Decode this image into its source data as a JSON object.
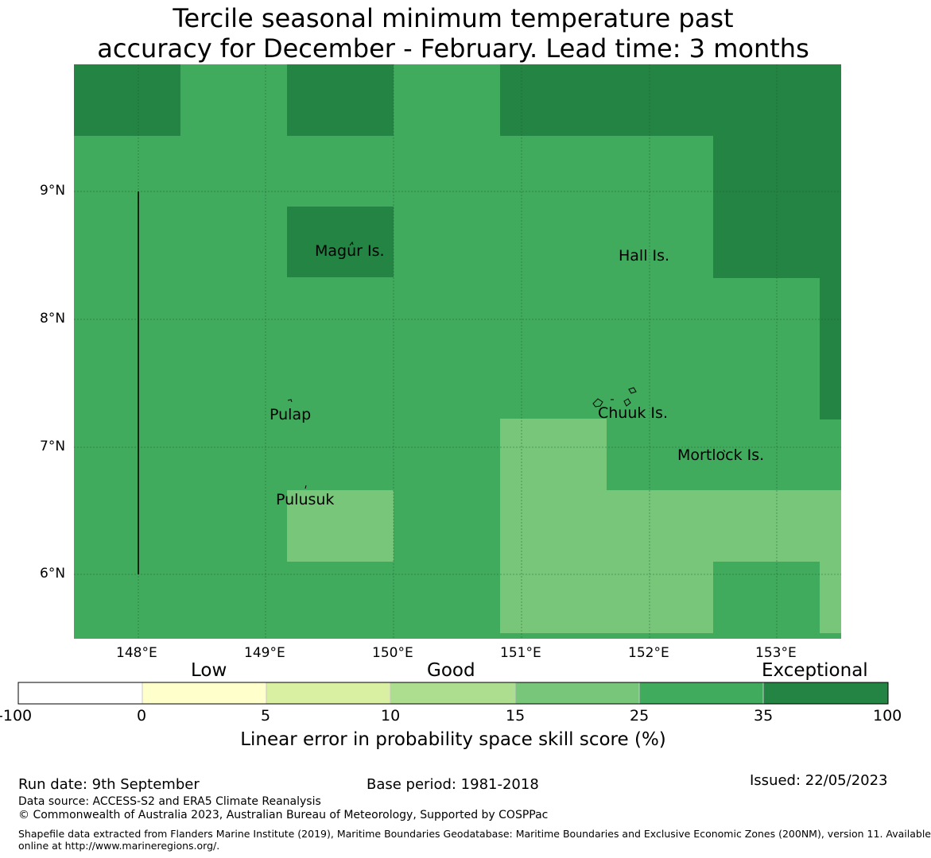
{
  "title": {
    "line1": "Tercile seasonal minimum temperature past",
    "line2": "accuracy for December - February. Lead time: 3 months"
  },
  "map": {
    "lat_labels": [
      "9°N",
      "8°N",
      "7°N",
      "6°N"
    ],
    "lon_labels": [
      "148°E",
      "149°E",
      "150°E",
      "151°E",
      "152°E",
      "153°E"
    ],
    "places": [
      "Magur Is.",
      "Hall Is.",
      "Pulap",
      "Chuuk Is.",
      "Mortlock Is.",
      "Pulusuk"
    ],
    "colors": {
      "class_25_35": "#41ab5d",
      "class_35_100": "#238443",
      "class_15_25": "#78c679"
    }
  },
  "colorbar": {
    "categories": [
      "Low",
      "Good",
      "Exceptional"
    ],
    "ticks": [
      "-100",
      "0",
      "5",
      "10",
      "15",
      "25",
      "35",
      "100"
    ],
    "colors": [
      "#ffffff",
      "#ffffcc",
      "#d9f0a3",
      "#addd8e",
      "#78c679",
      "#41ab5d",
      "#238443"
    ],
    "label": "Linear error in probability space skill score (%)"
  },
  "footer": {
    "run_date": "Run date: 9th September",
    "base_period": "Base period: 1981-2018",
    "issued": "Issued: 22/05/2023",
    "data_source": "Data source: ACCESS-S2 and ERA5 Climate Reanalysis",
    "copyright": "© Commonwealth of Australia 2023, Australian Bureau of Meteorology, Supported by COSPPac",
    "shapefile_line1": "Shapefile data extracted from Flanders Marine Institute (2019), Maritime Boundaries Geodatabase: Maritime Boundaries and Exclusive Economic Zones (200NM), version 11. Available",
    "shapefile_line2": "online at http://www.marineregions.org/."
  }
}
